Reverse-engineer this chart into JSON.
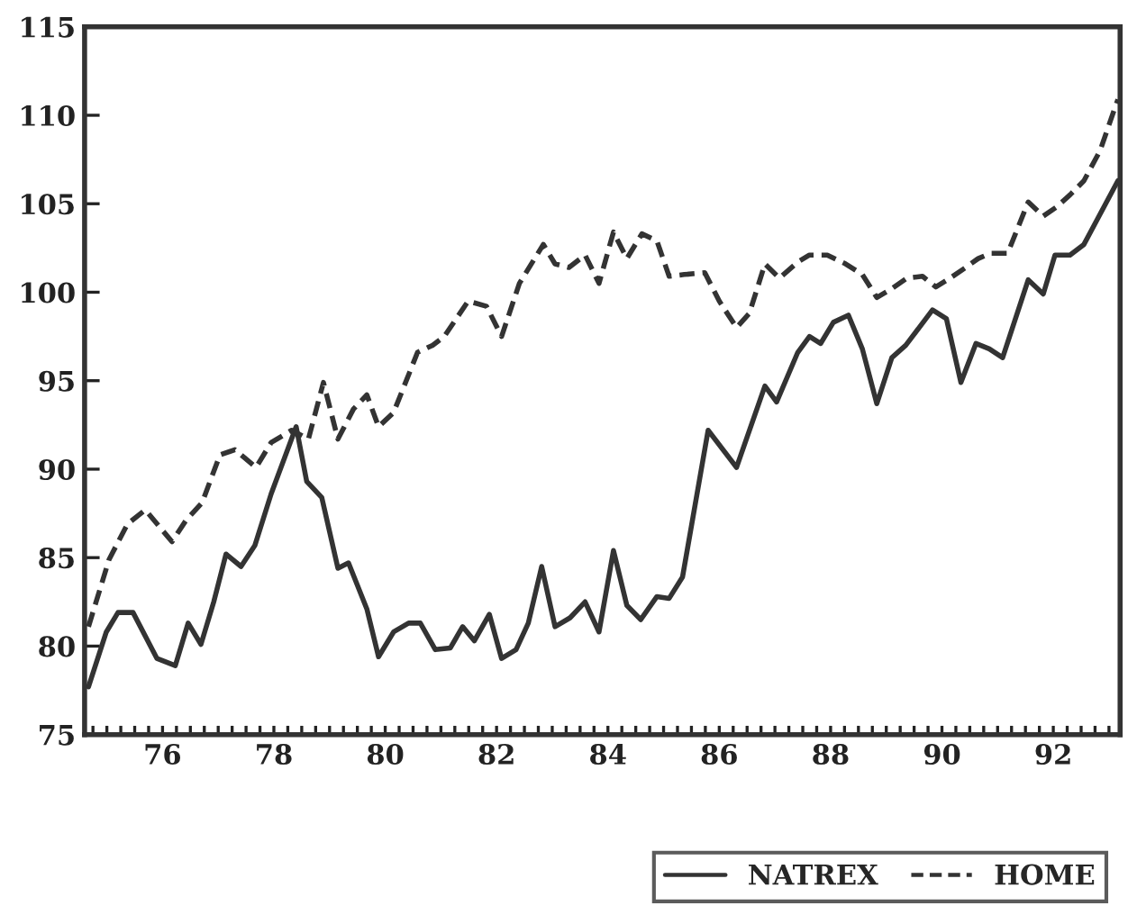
{
  "chart_data": {
    "type": "line",
    "series": [
      {
        "name": "NATREX",
        "color": "#333333",
        "line_style": "solid",
        "x": [
          74.67,
          74.99,
          75.2,
          75.47,
          75.9,
          76.23,
          76.46,
          76.69,
          76.92,
          77.14,
          77.41,
          77.66,
          77.95,
          78.4,
          78.59,
          78.86,
          79.15,
          79.34,
          79.67,
          79.88,
          80.15,
          80.42,
          80.63,
          80.9,
          81.17,
          81.39,
          81.6,
          81.87,
          82.09,
          82.35,
          82.57,
          82.81,
          83.05,
          83.32,
          83.59,
          83.84,
          84.1,
          84.34,
          84.59,
          84.88,
          85.1,
          85.34,
          85.8,
          86.31,
          86.82,
          87.03,
          87.41,
          87.62,
          87.82,
          88.05,
          88.32,
          88.57,
          88.83,
          89.1,
          89.35,
          89.83,
          90.08,
          90.34,
          90.61,
          90.85,
          91.09,
          91.55,
          91.82,
          92.03,
          92.3,
          92.55,
          93.16
        ],
        "values": [
          77.7,
          80.8,
          81.9,
          81.9,
          79.3,
          78.9,
          81.3,
          80.1,
          82.5,
          85.2,
          84.5,
          85.7,
          88.6,
          92.4,
          89.3,
          88.4,
          84.4,
          84.7,
          82.1,
          79.4,
          80.8,
          81.3,
          81.3,
          79.8,
          79.9,
          81.1,
          80.3,
          81.8,
          79.3,
          79.8,
          81.3,
          84.5,
          81.1,
          81.6,
          82.5,
          80.8,
          85.4,
          82.3,
          81.5,
          82.8,
          82.7,
          83.9,
          92.2,
          90.1,
          94.7,
          93.8,
          96.6,
          97.5,
          97.1,
          98.3,
          98.7,
          96.8,
          93.7,
          96.3,
          97.0,
          99.0,
          98.5,
          94.9,
          97.1,
          96.8,
          96.3,
          100.7,
          99.9,
          102.1,
          102.1,
          102.7,
          106.3
        ]
      },
      {
        "name": "HOME",
        "color": "#333333",
        "line_style": "dashed",
        "x": [
          74.67,
          75.04,
          75.37,
          75.69,
          76.17,
          76.42,
          76.71,
          77.03,
          77.3,
          77.68,
          77.95,
          78.32,
          78.62,
          78.89,
          79.15,
          79.43,
          79.67,
          79.88,
          80.15,
          80.58,
          80.85,
          81.06,
          81.49,
          81.82,
          82.09,
          82.41,
          82.84,
          83.05,
          83.3,
          83.59,
          83.84,
          84.1,
          84.34,
          84.61,
          84.88,
          85.1,
          85.37,
          85.74,
          86.0,
          86.31,
          86.54,
          86.82,
          87.08,
          87.41,
          87.62,
          87.94,
          88.27,
          88.57,
          88.83,
          89.1,
          89.37,
          89.65,
          89.89,
          90.1,
          90.38,
          90.65,
          90.87,
          91.18,
          91.55,
          91.82,
          92.05,
          92.3,
          92.55,
          92.84,
          93.16
        ],
        "values": [
          81.1,
          84.9,
          86.9,
          87.7,
          85.9,
          87.1,
          88.1,
          90.8,
          91.1,
          90.1,
          91.5,
          92.2,
          91.7,
          94.9,
          91.7,
          93.4,
          94.2,
          92.4,
          93.2,
          96.6,
          97.0,
          97.5,
          99.5,
          99.2,
          97.5,
          100.5,
          102.7,
          101.6,
          101.4,
          102.1,
          100.5,
          103.4,
          101.9,
          103.3,
          102.9,
          100.9,
          101.0,
          101.1,
          99.5,
          98.0,
          98.8,
          101.6,
          100.8,
          101.7,
          102.1,
          102.1,
          101.6,
          101.0,
          99.7,
          100.2,
          100.8,
          100.9,
          100.3,
          100.7,
          101.3,
          101.9,
          102.2,
          102.2,
          105.1,
          104.3,
          104.8,
          105.5,
          106.3,
          108.0,
          110.9
        ]
      }
    ],
    "xlim": [
      74.6,
      93.2
    ],
    "ylim": [
      75,
      115
    ],
    "yticks": [
      75,
      80,
      85,
      90,
      95,
      100,
      105,
      110,
      115
    ],
    "xticks": [
      {
        "value": 74.75,
        "label": null
      },
      {
        "value": 75,
        "label": null
      },
      {
        "value": 75.25,
        "label": null
      },
      {
        "value": 75.5,
        "label": null
      },
      {
        "value": 75.75,
        "label": null
      },
      76,
      {
        "value": 76.25,
        "label": null
      },
      {
        "value": 76.5,
        "label": null
      },
      {
        "value": 76.75,
        "label": null
      },
      {
        "value": 77,
        "label": null
      },
      {
        "value": 77.25,
        "label": null
      },
      {
        "value": 77.5,
        "label": null
      },
      {
        "value": 77.75,
        "label": null
      },
      78,
      {
        "value": 78.25,
        "label": null
      },
      {
        "value": 78.5,
        "label": null
      },
      {
        "value": 78.75,
        "label": null
      },
      {
        "value": 79,
        "label": null
      },
      {
        "value": 79.25,
        "label": null
      },
      {
        "value": 79.5,
        "label": null
      },
      {
        "value": 79.75,
        "label": null
      },
      80,
      {
        "value": 80.25,
        "label": null
      },
      {
        "value": 80.5,
        "label": null
      },
      {
        "value": 80.75,
        "label": null
      },
      {
        "value": 81,
        "label": null
      },
      {
        "value": 81.25,
        "label": null
      },
      {
        "value": 81.5,
        "label": null
      },
      {
        "value": 81.75,
        "label": null
      },
      82,
      {
        "value": 82.25,
        "label": null
      },
      {
        "value": 82.5,
        "label": null
      },
      {
        "value": 82.75,
        "label": null
      },
      {
        "value": 83,
        "label": null
      },
      {
        "value": 83.25,
        "label": null
      },
      {
        "value": 83.5,
        "label": null
      },
      {
        "value": 83.75,
        "label": null
      },
      84,
      {
        "value": 84.25,
        "label": null
      },
      {
        "value": 84.5,
        "label": null
      },
      {
        "value": 84.75,
        "label": null
      },
      {
        "value": 85,
        "label": null
      },
      {
        "value": 85.25,
        "label": null
      },
      {
        "value": 85.5,
        "label": null
      },
      {
        "value": 85.75,
        "label": null
      },
      86,
      {
        "value": 86.25,
        "label": null
      },
      {
        "value": 86.5,
        "label": null
      },
      {
        "value": 86.75,
        "label": null
      },
      {
        "value": 87,
        "label": null
      },
      {
        "value": 87.25,
        "label": null
      },
      {
        "value": 87.5,
        "label": null
      },
      {
        "value": 87.75,
        "label": null
      },
      88,
      {
        "value": 88.25,
        "label": null
      },
      {
        "value": 88.5,
        "label": null
      },
      {
        "value": 88.75,
        "label": null
      },
      {
        "value": 89,
        "label": null
      },
      {
        "value": 89.25,
        "label": null
      },
      {
        "value": 89.5,
        "label": null
      },
      {
        "value": 89.75,
        "label": null
      },
      90,
      {
        "value": 90.25,
        "label": null
      },
      {
        "value": 90.5,
        "label": null
      },
      {
        "value": 90.75,
        "label": null
      },
      {
        "value": 91,
        "label": null
      },
      {
        "value": 91.25,
        "label": null
      },
      {
        "value": 91.5,
        "label": null
      },
      {
        "value": 91.75,
        "label": null
      },
      92,
      {
        "value": 92.25,
        "label": null
      },
      {
        "value": 92.5,
        "label": null
      },
      {
        "value": 92.75,
        "label": null
      },
      {
        "value": 93,
        "label": null
      }
    ],
    "grid": false,
    "legend": "bottom right"
  }
}
